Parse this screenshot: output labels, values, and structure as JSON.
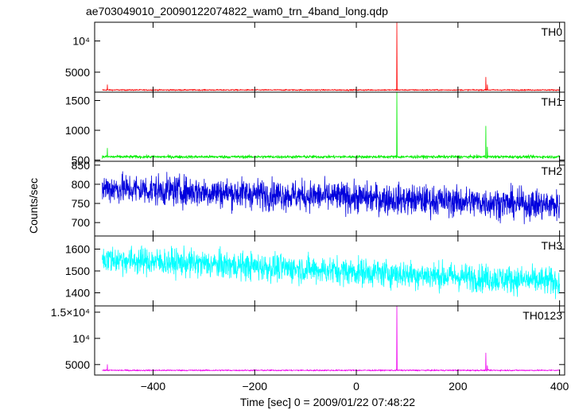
{
  "chart_data": {
    "type": "line",
    "title": "ae703049010_20090122074822_wam0_trn_4band_long.qdp",
    "xlabel": "Time [sec] 0 = 2009/01/22 07:48:22",
    "ylabel": "Counts/sec",
    "xlim": [
      -515,
      410
    ],
    "x_ticks": [
      -400,
      -200,
      0,
      200,
      400
    ],
    "x_tick_labels": [
      "−400",
      "−200",
      "0",
      "200",
      "400"
    ],
    "x_range_data": [
      -500,
      400
    ],
    "grid": false,
    "panels": [
      {
        "name": "TH0",
        "color": "#ff0000",
        "ylim": [
          1800,
          13000
        ],
        "yticks": [
          5000,
          10000
        ],
        "ytick_labels": [
          "5000",
          "10⁴"
        ],
        "baseline": 2150,
        "noise": 70,
        "spikes": [
          {
            "x": -490,
            "y": 3000
          },
          {
            "x": 80,
            "y": 12900
          },
          {
            "x": 255,
            "y": 4200
          },
          {
            "x": 258,
            "y": 3000
          }
        ]
      },
      {
        "name": "TH1",
        "color": "#00ee00",
        "ylim": [
          480,
          1640
        ],
        "yticks": [
          500,
          1000,
          1500
        ],
        "ytick_labels": [
          "500",
          "1000",
          "1500"
        ],
        "baseline": 555,
        "noise": 18,
        "spikes": [
          {
            "x": -490,
            "y": 700
          },
          {
            "x": 80,
            "y": 1640
          },
          {
            "x": 255,
            "y": 1070
          },
          {
            "x": 258,
            "y": 720
          }
        ]
      },
      {
        "name": "TH2",
        "color": "#0000dd",
        "ylim": [
          665,
          860
        ],
        "yticks": [
          700,
          750,
          800,
          850
        ],
        "ytick_labels": [
          "700",
          "750",
          "800",
          "850"
        ],
        "trend": [
          790,
          745
        ],
        "noise": 28,
        "spikes": []
      },
      {
        "name": "TH3",
        "color": "#00ffff",
        "ylim": [
          1340,
          1660
        ],
        "yticks": [
          1400,
          1500,
          1600
        ],
        "ytick_labels": [
          "1400",
          "1500",
          "1600"
        ],
        "trend": [
          1555,
          1450
        ],
        "noise": 45,
        "spikes": []
      },
      {
        "name": "TH0123",
        "color": "#ee00ee",
        "ylim": [
          3000,
          16200
        ],
        "yticks": [
          5000,
          10000,
          15000
        ],
        "ytick_labels": [
          "5000",
          "10⁴",
          "1.5×10⁴"
        ],
        "baseline": 3900,
        "noise": 90,
        "spikes": [
          {
            "x": -490,
            "y": 5000
          },
          {
            "x": 80,
            "y": 16100
          },
          {
            "x": 255,
            "y": 7200
          },
          {
            "x": 258,
            "y": 4800
          }
        ]
      }
    ]
  }
}
